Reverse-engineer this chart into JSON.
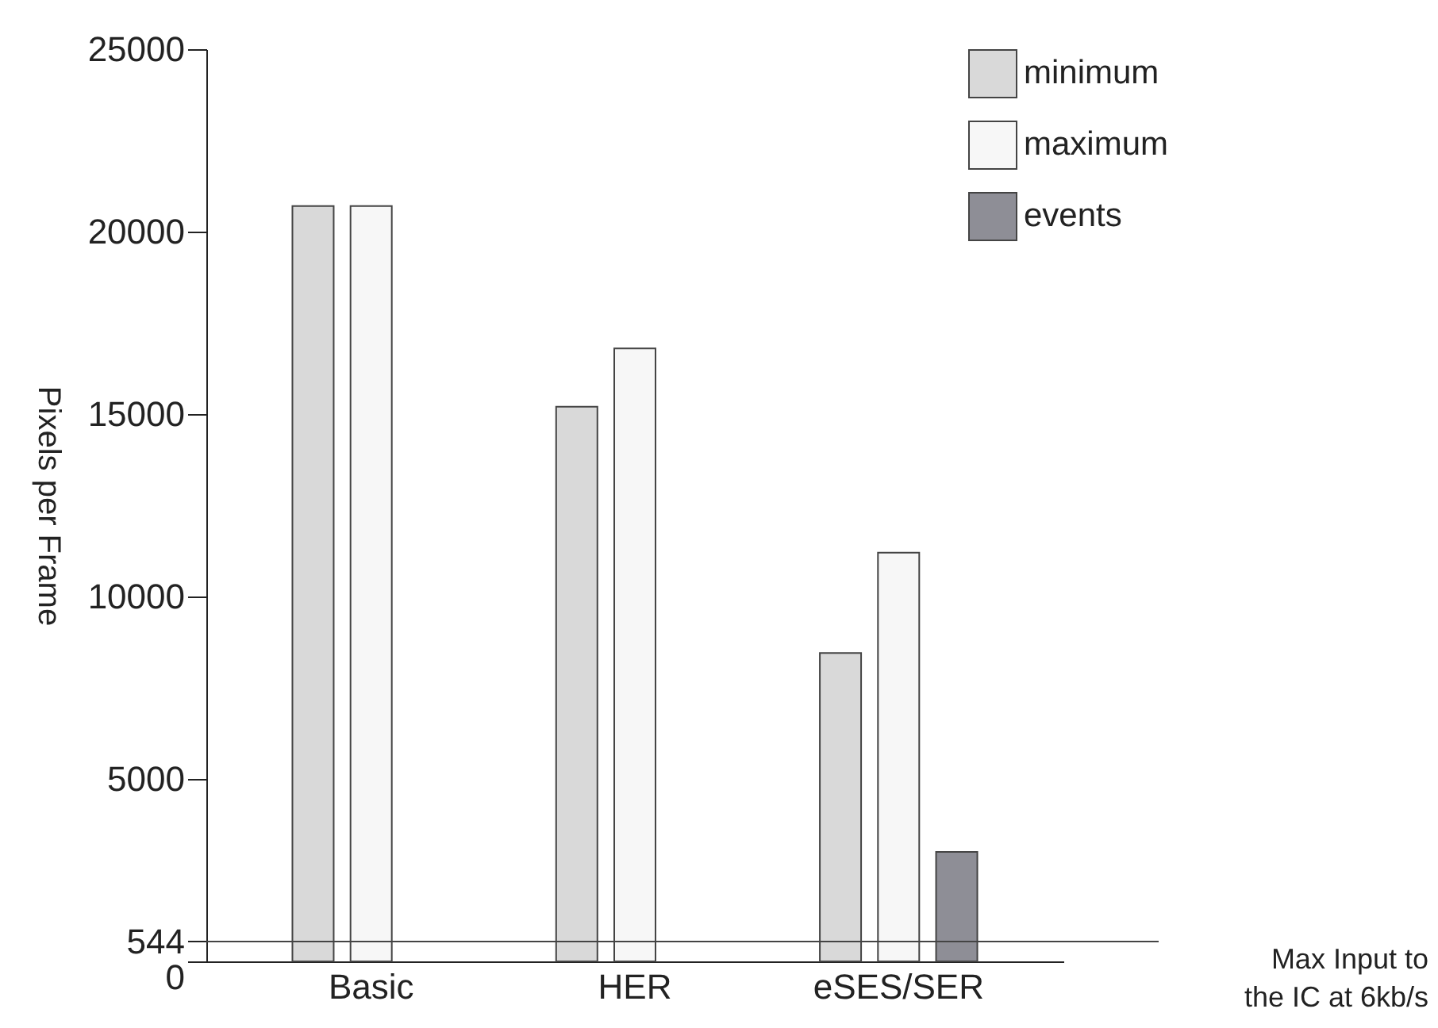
{
  "chart_data": {
    "type": "bar",
    "ylabel": "Pixels per Frame",
    "categories": [
      "Basic",
      "HER",
      "eSES/SER"
    ],
    "series": [
      {
        "name": "minimum",
        "color": "#d9d9d9",
        "values": [
          20700,
          15200,
          8450
        ]
      },
      {
        "name": "maximum",
        "color": "#f7f7f7",
        "values": [
          20700,
          16800,
          11200
        ]
      },
      {
        "name": "events",
        "color": "#8e8e96",
        "values": [
          null,
          null,
          3000
        ]
      }
    ],
    "ylim": [
      0,
      25000
    ],
    "yticks": [
      0,
      544,
      5000,
      10000,
      15000,
      20000,
      25000
    ],
    "ref_lines": [
      {
        "axis": "y",
        "value": 544,
        "label": "Max Input to the IC at 6kb/s",
        "color": "#444444"
      }
    ],
    "grid": false,
    "legend": "right"
  }
}
